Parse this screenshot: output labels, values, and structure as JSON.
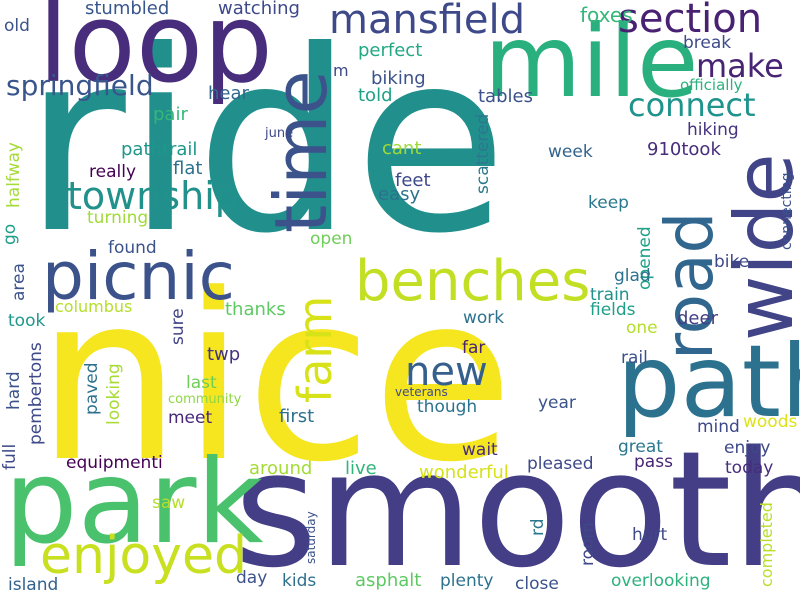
{
  "words": [
    {
      "text": "ride",
      "color": "#21908d",
      "vertical": false
    },
    {
      "text": "nice",
      "color": "#f5e61f",
      "vertical": false
    },
    {
      "text": "smooth",
      "color": "#433e85",
      "vertical": false
    },
    {
      "text": "park",
      "color": "#4ac16d",
      "vertical": false
    },
    {
      "text": "loop",
      "color": "#472d7b",
      "vertical": false
    },
    {
      "text": "path",
      "color": "#2c728e",
      "vertical": false
    },
    {
      "text": "mile",
      "color": "#2ab07f",
      "vertical": false
    },
    {
      "text": "time",
      "color": "#3b528b",
      "vertical": true
    },
    {
      "text": "wide",
      "color": "#414487",
      "vertical": true
    },
    {
      "text": "road",
      "color": "#31668e",
      "vertical": true
    },
    {
      "text": "picnic",
      "color": "#3b528b",
      "vertical": false
    },
    {
      "text": "benches",
      "color": "#c2df23",
      "vertical": false
    },
    {
      "text": "enjoyed",
      "color": "#c8e020",
      "vertical": false
    },
    {
      "text": "farm",
      "color": "#d8e219",
      "vertical": true
    },
    {
      "text": "mansfield",
      "color": "#3e4989",
      "vertical": false
    },
    {
      "text": "section",
      "color": "#482173",
      "vertical": false
    },
    {
      "text": "township",
      "color": "#21918c",
      "vertical": false
    },
    {
      "text": "new",
      "color": "#355f8d",
      "vertical": false
    },
    {
      "text": "springfield",
      "color": "#39568c",
      "vertical": false
    },
    {
      "text": "connect",
      "color": "#1f948c",
      "vertical": false
    },
    {
      "text": "make",
      "color": "#482475",
      "vertical": false
    },
    {
      "text": "foxes",
      "color": "#35b779",
      "vertical": false
    },
    {
      "text": "watching",
      "color": "#3e4989",
      "vertical": false
    },
    {
      "text": "stumbled",
      "color": "#39568c",
      "vertical": false
    },
    {
      "text": "old",
      "color": "#3b528b",
      "vertical": false
    },
    {
      "text": "perfect",
      "color": "#22a884",
      "vertical": false
    },
    {
      "text": "break",
      "color": "#3e4a89",
      "vertical": false
    },
    {
      "text": "officially",
      "color": "#2db27d",
      "vertical": false
    },
    {
      "text": "biking",
      "color": "#3b528b",
      "vertical": false
    },
    {
      "text": "told",
      "color": "#1fa187",
      "vertical": false
    },
    {
      "text": "tables",
      "color": "#3b528b",
      "vertical": false
    },
    {
      "text": "m",
      "color": "#3e4989",
      "vertical": false
    },
    {
      "text": "hear",
      "color": "#31688e",
      "vertical": false
    },
    {
      "text": "pair",
      "color": "#35b779",
      "vertical": false
    },
    {
      "text": "june",
      "color": "#3e4989",
      "vertical": false
    },
    {
      "text": "hiking",
      "color": "#46327e",
      "vertical": false
    },
    {
      "text": "scattered",
      "color": "#2a788e",
      "vertical": true
    },
    {
      "text": "pathtrail",
      "color": "#1f968b",
      "vertical": false
    },
    {
      "text": "cant",
      "color": "#9fda3a",
      "vertical": false
    },
    {
      "text": "week",
      "color": "#33638d",
      "vertical": false
    },
    {
      "text": "910took",
      "color": "#472d7b",
      "vertical": false
    },
    {
      "text": "really",
      "color": "#440154",
      "vertical": false
    },
    {
      "text": "flat",
      "color": "#2d708e",
      "vertical": false
    },
    {
      "text": "feet",
      "color": "#3e4989",
      "vertical": false
    },
    {
      "text": "easy",
      "color": "#2c728e",
      "vertical": false
    },
    {
      "text": "keep",
      "color": "#2a788e",
      "vertical": false
    },
    {
      "text": "connecting",
      "color": "#3b528b",
      "vertical": true
    },
    {
      "text": "turning",
      "color": "#a0da39",
      "vertical": false
    },
    {
      "text": "opened",
      "color": "#1fa187",
      "vertical": true
    },
    {
      "text": "halfway",
      "color": "#a5db36",
      "vertical": true
    },
    {
      "text": "go",
      "color": "#1f9e89",
      "vertical": true
    },
    {
      "text": "found",
      "color": "#3b528b",
      "vertical": false
    },
    {
      "text": "open",
      "color": "#6ece58",
      "vertical": false
    },
    {
      "text": "glad",
      "color": "#2c728e",
      "vertical": false
    },
    {
      "text": "bike",
      "color": "#3e4989",
      "vertical": false
    },
    {
      "text": "area",
      "color": "#3b528b",
      "vertical": true
    },
    {
      "text": "train",
      "color": "#21918c",
      "vertical": false
    },
    {
      "text": "fields",
      "color": "#1f9e89",
      "vertical": false
    },
    {
      "text": "columbus",
      "color": "#b5de2b",
      "vertical": false
    },
    {
      "text": "sure",
      "color": "#404387",
      "vertical": true
    },
    {
      "text": "thanks",
      "color": "#5ec962",
      "vertical": false
    },
    {
      "text": "took",
      "color": "#1f988b",
      "vertical": false
    },
    {
      "text": "work",
      "color": "#2c728e",
      "vertical": false
    },
    {
      "text": "deer",
      "color": "#433e85",
      "vertical": false
    },
    {
      "text": "one",
      "color": "#b5de2b",
      "vertical": false
    },
    {
      "text": "far",
      "color": "#482173",
      "vertical": false
    },
    {
      "text": "twp",
      "color": "#46327e",
      "vertical": false
    },
    {
      "text": "rail",
      "color": "#3b528b",
      "vertical": false
    },
    {
      "text": "pembertons",
      "color": "#3e4989",
      "vertical": true
    },
    {
      "text": "hard",
      "color": "#3b528b",
      "vertical": true
    },
    {
      "text": "full",
      "color": "#3e4989",
      "vertical": true
    },
    {
      "text": "paved",
      "color": "#2c728e",
      "vertical": true
    },
    {
      "text": "looking",
      "color": "#a8db34",
      "vertical": true
    },
    {
      "text": "last",
      "color": "#6ece58",
      "vertical": false
    },
    {
      "text": "community",
      "color": "#8fd744",
      "vertical": false
    },
    {
      "text": "veterans",
      "color": "#3e4989",
      "vertical": false
    },
    {
      "text": "though",
      "color": "#2c728e",
      "vertical": false
    },
    {
      "text": "year",
      "color": "#3b528b",
      "vertical": false
    },
    {
      "text": "meet",
      "color": "#482878",
      "vertical": false
    },
    {
      "text": "first",
      "color": "#2c728e",
      "vertical": false
    },
    {
      "text": "woods",
      "color": "#dde318",
      "vertical": false
    },
    {
      "text": "mind",
      "color": "#3e4989",
      "vertical": false
    },
    {
      "text": "wait",
      "color": "#472d7b",
      "vertical": false
    },
    {
      "text": "great",
      "color": "#2a788e",
      "vertical": false
    },
    {
      "text": "enjoy",
      "color": "#3e4989",
      "vertical": false
    },
    {
      "text": "pass",
      "color": "#482475",
      "vertical": false
    },
    {
      "text": "equipmenti",
      "color": "#440154",
      "vertical": false
    },
    {
      "text": "around",
      "color": "#a5db36",
      "vertical": false
    },
    {
      "text": "live",
      "color": "#31b57b",
      "vertical": false
    },
    {
      "text": "wonderful",
      "color": "#d8e219",
      "vertical": false
    },
    {
      "text": "pleased",
      "color": "#3e4989",
      "vertical": false
    },
    {
      "text": "today",
      "color": "#472d7b",
      "vertical": false
    },
    {
      "text": "rd",
      "color": "#2a788e",
      "vertical": true
    },
    {
      "text": "room",
      "color": "#3e4989",
      "vertical": true
    },
    {
      "text": "saw",
      "color": "#b5de2b",
      "vertical": false
    },
    {
      "text": "saturday",
      "color": "#3b528b",
      "vertical": true
    },
    {
      "text": "completed",
      "color": "#b8de29",
      "vertical": true
    },
    {
      "text": "hurt",
      "color": "#3e4989",
      "vertical": false
    },
    {
      "text": "day",
      "color": "#3b528b",
      "vertical": false
    },
    {
      "text": "kids",
      "color": "#2d708e",
      "vertical": false
    },
    {
      "text": "asphalt",
      "color": "#5ec962",
      "vertical": false
    },
    {
      "text": "plenty",
      "color": "#2c728e",
      "vertical": false
    },
    {
      "text": "close",
      "color": "#3b528b",
      "vertical": false
    },
    {
      "text": "overlooking",
      "color": "#2db27d",
      "vertical": false
    },
    {
      "text": "island",
      "color": "#33638d",
      "vertical": false
    }
  ]
}
